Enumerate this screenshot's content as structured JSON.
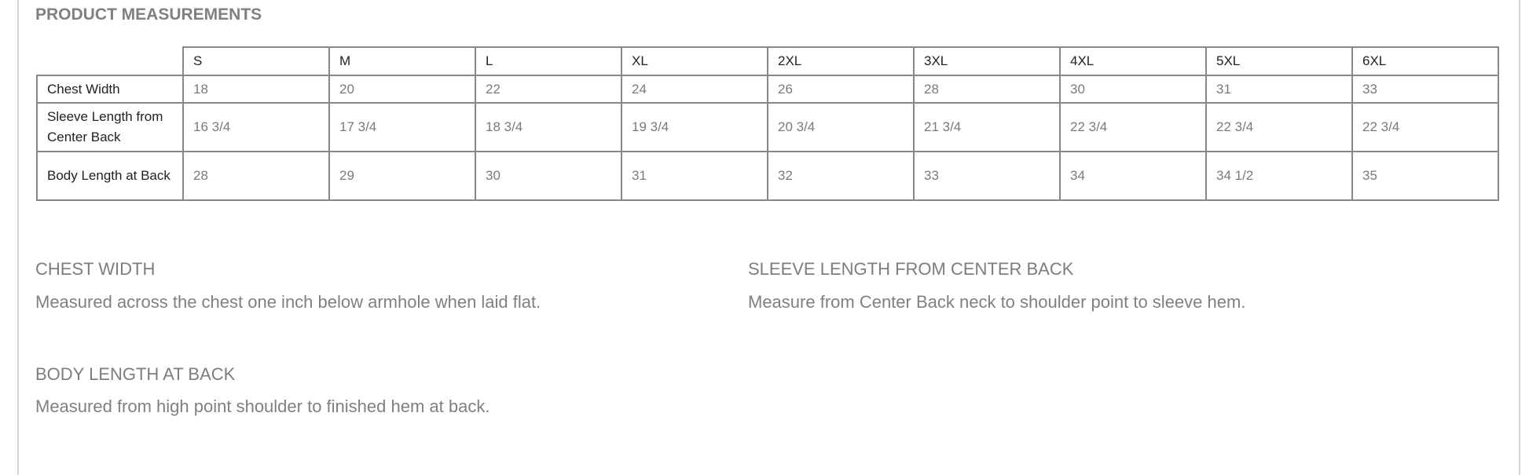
{
  "title": "PRODUCT MEASUREMENTS",
  "table": {
    "sizes": [
      "S",
      "M",
      "L",
      "XL",
      "2XL",
      "3XL",
      "4XL",
      "5XL",
      "6XL"
    ],
    "rows": [
      {
        "label": "Chest Width",
        "values": [
          "18",
          "20",
          "22",
          "24",
          "26",
          "28",
          "30",
          "31",
          "33"
        ]
      },
      {
        "label": "Sleeve Length from Center Back",
        "values": [
          "16 3/4",
          "17 3/4",
          "18 3/4",
          "19 3/4",
          "20 3/4",
          "21 3/4",
          "22 3/4",
          "22 3/4",
          "22 3/4"
        ]
      },
      {
        "label": "Body Length at Back",
        "values": [
          "28",
          "29",
          "30",
          "31",
          "32",
          "33",
          "34",
          "34 1/2",
          "35"
        ]
      }
    ]
  },
  "notes": [
    {
      "heading": "CHEST WIDTH",
      "text": "Measured across the chest one inch below armhole when laid flat."
    },
    {
      "heading": "SLEEVE LENGTH FROM CENTER BACK",
      "text": "Measure from Center Back neck to shoulder point to sleeve hem."
    },
    {
      "heading": "BODY LENGTH AT BACK",
      "text": "Measured from high point shoulder to finished hem at back."
    }
  ]
}
